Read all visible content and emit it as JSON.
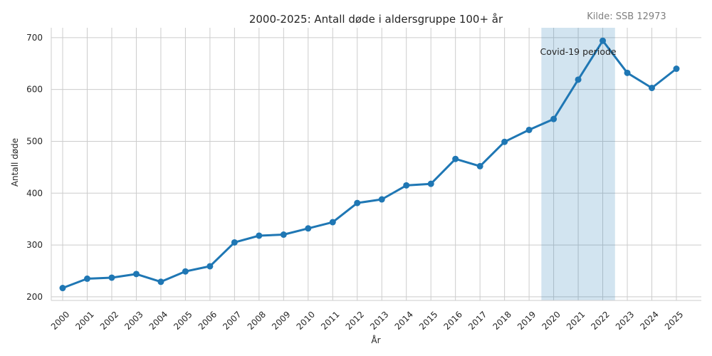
{
  "chart_data": {
    "type": "line",
    "title": "2000-2025: Antall døde i aldersgruppe 100+ år",
    "source": "Kilde: SSB 12973",
    "xlabel": "År",
    "ylabel": "Antall døde",
    "x": [
      "2000",
      "2001",
      "2002",
      "2003",
      "2004",
      "2005",
      "2006",
      "2007",
      "2008",
      "2009",
      "2010",
      "2011",
      "2012",
      "2013",
      "2014",
      "2015",
      "2016",
      "2017",
      "2018",
      "2019",
      "2020",
      "2021",
      "2022",
      "2023",
      "2024",
      "2025"
    ],
    "yticks": [
      200,
      300,
      400,
      500,
      600,
      700
    ],
    "ylim": [
      193,
      719
    ],
    "grid": true,
    "series": [
      {
        "values": [
          217,
          235,
          237,
          244,
          229,
          249,
          259,
          305,
          318,
          320,
          332,
          344,
          381,
          388,
          415,
          418,
          466,
          452,
          499,
          522,
          543,
          619,
          694,
          632,
          603,
          640
        ],
        "color": "#1f77b4"
      }
    ],
    "highlight": {
      "label": "Covid-19 periode",
      "from": "2020",
      "to": "2022",
      "color": "#1f77b4",
      "opacity": 0.2
    }
  }
}
